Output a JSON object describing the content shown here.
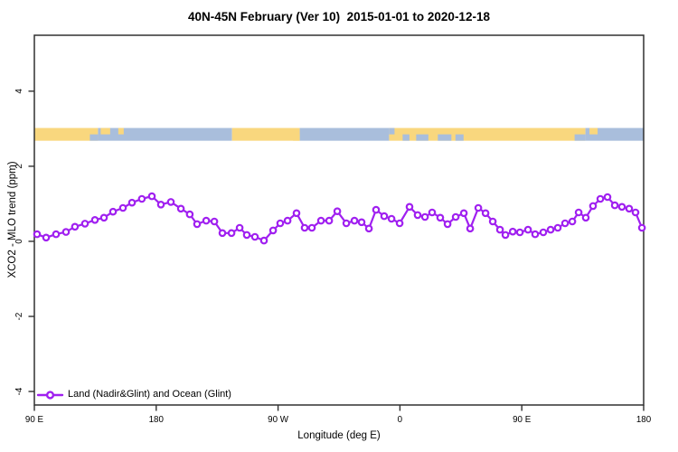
{
  "title": "40N-45N February (Ver 10)  2015-01-01 to 2020-12-18",
  "legend": {
    "label": "Land (Nadir&Glint) and Ocean (Glint)"
  },
  "colors": {
    "series": "#A020F0",
    "land": "#F9D77E",
    "ocean": "#A9BEDC",
    "axis": "#303030",
    "text": "#000000",
    "background": "#ffffff"
  },
  "chart_data": {
    "type": "line",
    "title": "40N-45N February (Ver 10)  2015-01-01 to 2020-12-18",
    "xlabel": "Longitude (deg E)",
    "ylabel": "XCO2 - MLO trend (ppm)",
    "xlim": [
      90,
      540
    ],
    "ylim": [
      -4.36,
      5.49
    ],
    "grid": false,
    "legend_position": "bottom-left",
    "x_ticks": [
      {
        "value": 90,
        "label": "90 E"
      },
      {
        "value": 180,
        "label": "180"
      },
      {
        "value": 270,
        "label": "90 W"
      },
      {
        "value": 360,
        "label": "0"
      },
      {
        "value": 450,
        "label": "90 E"
      },
      {
        "value": 540,
        "label": "180"
      }
    ],
    "y_ticks": [
      {
        "value": 4,
        "label": "4"
      },
      {
        "value": 2,
        "label": "2"
      },
      {
        "value": 0,
        "label": "0"
      },
      {
        "value": -2,
        "label": "-2"
      },
      {
        "value": -4,
        "label": "-4"
      }
    ],
    "series": [
      {
        "name": "Land (Nadir&Glint) and Ocean (Glint)",
        "marker": "open-circle",
        "x": [
          92,
          98.7,
          106,
          113.4,
          120,
          127.4,
          134.7,
          141.4,
          148.1,
          155.4,
          162.1,
          169.4,
          176.8,
          183.5,
          190.8,
          198.2,
          204.8,
          210.2,
          216.9,
          222.9,
          228.9,
          235.6,
          241.6,
          246.9,
          252.9,
          259.6,
          266.3,
          271.6,
          277,
          283.6,
          289.6,
          295,
          301.7,
          307.7,
          313.7,
          320.4,
          326.4,
          331.7,
          337.1,
          342.4,
          348.4,
          353.8,
          359.8,
          367.1,
          373.1,
          378.5,
          383.8,
          389.8,
          395.2,
          401.2,
          407.2,
          411.9,
          417.9,
          423.2,
          428.6,
          433.9,
          437.9,
          443.3,
          448.6,
          454.6,
          459.9,
          465.9,
          471.3,
          476.6,
          482,
          487.3,
          492,
          497.3,
          502.6,
          508,
          513.3,
          518.7,
          524,
          529.3,
          534,
          538.7
        ],
        "y": [
          0.19,
          0.1,
          0.19,
          0.25,
          0.39,
          0.47,
          0.57,
          0.63,
          0.79,
          0.89,
          1.03,
          1.13,
          1.2,
          0.98,
          1.05,
          0.87,
          0.72,
          0.46,
          0.55,
          0.53,
          0.22,
          0.22,
          0.36,
          0.17,
          0.12,
          0.02,
          0.29,
          0.48,
          0.55,
          0.75,
          0.36,
          0.36,
          0.55,
          0.55,
          0.8,
          0.48,
          0.55,
          0.51,
          0.34,
          0.84,
          0.67,
          0.6,
          0.48,
          0.92,
          0.7,
          0.65,
          0.77,
          0.63,
          0.46,
          0.65,
          0.75,
          0.34,
          0.89,
          0.75,
          0.53,
          0.31,
          0.17,
          0.26,
          0.24,
          0.31,
          0.19,
          0.24,
          0.31,
          0.36,
          0.48,
          0.53,
          0.77,
          0.63,
          0.94,
          1.13,
          1.18,
          0.96,
          0.92,
          0.87,
          0.77,
          0.36
        ]
      }
    ],
    "map_band": {
      "description": "land/ocean strip across top of plot",
      "value_top": 3.02,
      "value_bottom": 2.68,
      "segments": [
        {
          "from": 90,
          "to": 137,
          "surface": "land"
        },
        {
          "from": 137,
          "to": 236,
          "surface": "ocean"
        },
        {
          "from": 236,
          "to": 286,
          "surface": "land"
        },
        {
          "from": 286,
          "to": 352,
          "surface": "ocean"
        },
        {
          "from": 352,
          "to": 497,
          "surface": "land"
        },
        {
          "from": 497,
          "to": 540,
          "surface": "ocean"
        }
      ],
      "patches": [
        {
          "from": 131,
          "to": 137,
          "row": "bottom",
          "surface": "ocean"
        },
        {
          "from": 139,
          "to": 146,
          "row": "top",
          "surface": "land"
        },
        {
          "from": 152,
          "to": 156,
          "row": "top",
          "surface": "land"
        },
        {
          "from": 281,
          "to": 286,
          "row": "bottom",
          "surface": "land"
        },
        {
          "from": 352,
          "to": 356,
          "row": "top",
          "surface": "ocean"
        },
        {
          "from": 362,
          "to": 367,
          "row": "bottom",
          "surface": "ocean"
        },
        {
          "from": 372,
          "to": 381,
          "row": "bottom",
          "surface": "ocean"
        },
        {
          "from": 388,
          "to": 398,
          "row": "bottom",
          "surface": "ocean"
        },
        {
          "from": 401,
          "to": 407,
          "row": "bottom",
          "surface": "ocean"
        },
        {
          "from": 489,
          "to": 497,
          "row": "bottom",
          "surface": "ocean"
        },
        {
          "from": 500,
          "to": 506,
          "row": "top",
          "surface": "land"
        }
      ]
    }
  }
}
